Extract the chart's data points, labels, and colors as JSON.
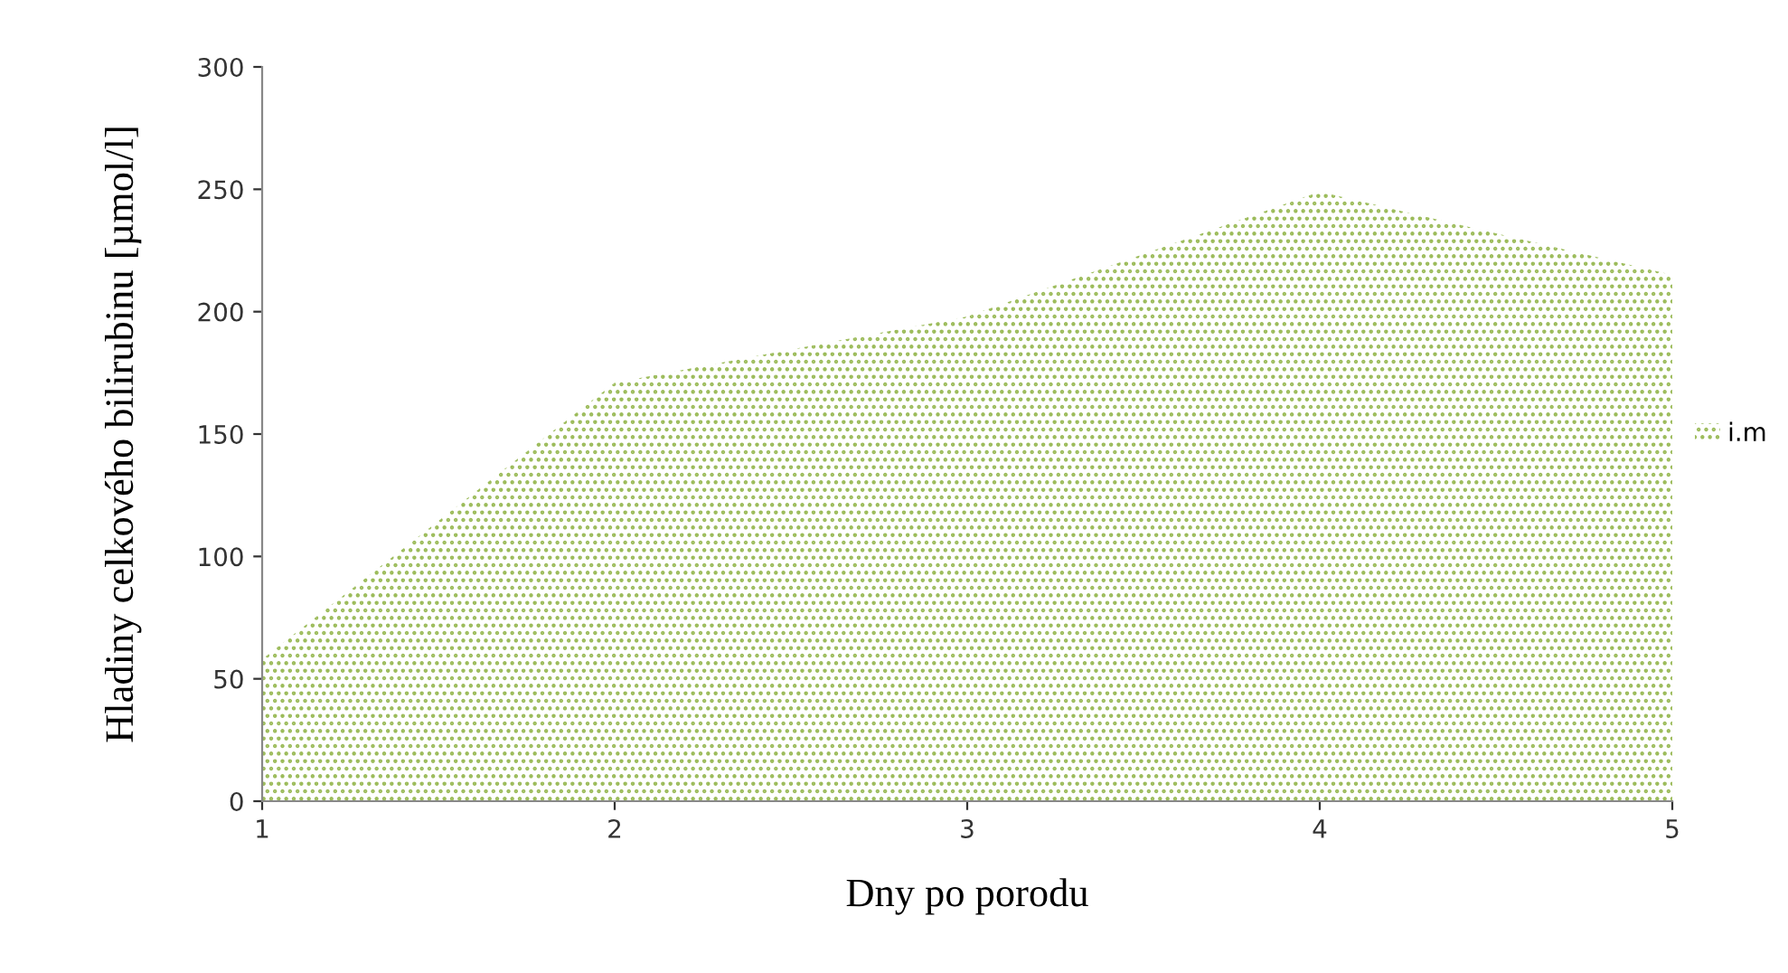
{
  "chart_data": {
    "type": "area",
    "xlabel": "Dny po porodu",
    "ylabel": "Hladiny celkového bilirubinu [µmol/l]",
    "x": [
      1,
      2,
      3,
      4,
      5
    ],
    "series": [
      {
        "name": "i.m",
        "color": "#9bbb59",
        "values": [
          58,
          171,
          198,
          249,
          215
        ]
      }
    ],
    "xlim": [
      1,
      5
    ],
    "xticks": [
      1,
      2,
      3,
      4,
      5
    ],
    "ylim": [
      0,
      300
    ],
    "yticks": [
      0,
      50,
      100,
      150,
      200,
      250,
      300
    ],
    "grid": false,
    "legend": "right"
  }
}
